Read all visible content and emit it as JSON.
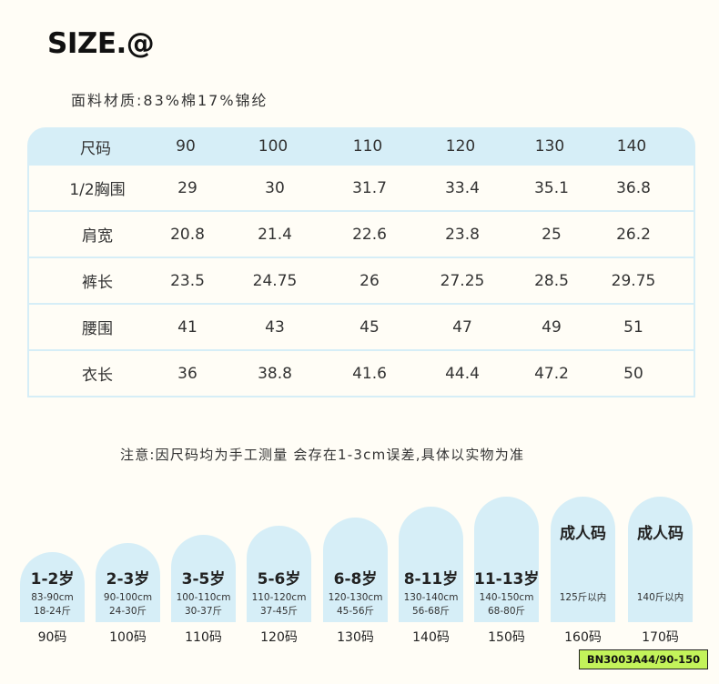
{
  "title": "SIZE.@",
  "material": "面料材质:83%棉17%锦纶",
  "table": {
    "header": [
      "尺码",
      "90",
      "100",
      "110",
      "120",
      "130",
      "140"
    ],
    "rows": [
      [
        "1/2胸围",
        "29",
        "30",
        "31.7",
        "33.4",
        "35.1",
        "36.8"
      ],
      [
        "肩宽",
        "20.8",
        "21.4",
        "22.6",
        "23.8",
        "25",
        "26.2"
      ],
      [
        "裤长",
        "23.5",
        "24.75",
        "26",
        "27.25",
        "28.5",
        "29.75"
      ],
      [
        "腰围",
        "41",
        "43",
        "45",
        "47",
        "49",
        "51"
      ],
      [
        "衣长",
        "36",
        "38.8",
        "41.6",
        "44.4",
        "47.2",
        "50"
      ]
    ]
  },
  "note": "注意:因尺码均为手工测量 会存在1-3cm误差,具体以实物为准",
  "size_cards": [
    {
      "age": "1-2岁",
      "height": "83-90cm",
      "weight": "18-24斤",
      "size": "90码"
    },
    {
      "age": "2-3岁",
      "height": "90-100cm",
      "weight": "24-30斤",
      "size": "100码"
    },
    {
      "age": "3-5岁",
      "height": "100-110cm",
      "weight": "30-37斤",
      "size": "110码"
    },
    {
      "age": "5-6岁",
      "height": "110-120cm",
      "weight": "37-45斤",
      "size": "120码"
    },
    {
      "age": "6-8岁",
      "height": "120-130cm",
      "weight": "45-56斤",
      "size": "130码"
    },
    {
      "age": "8-11岁",
      "height": "130-140cm",
      "weight": "56-68斤",
      "size": "140码"
    },
    {
      "age": "11-13岁",
      "height": "140-150cm",
      "weight": "68-80斤",
      "size": "150码"
    },
    {
      "age": "成人码",
      "height": "125斤以内",
      "weight": "",
      "size": "160码"
    },
    {
      "age": "成人码",
      "height": "140斤以内",
      "weight": "",
      "size": "170码"
    }
  ],
  "product_code": "BN3003A44/90-150",
  "colors": {
    "accent": "#d6eef7",
    "badge": "#c3f35a"
  }
}
